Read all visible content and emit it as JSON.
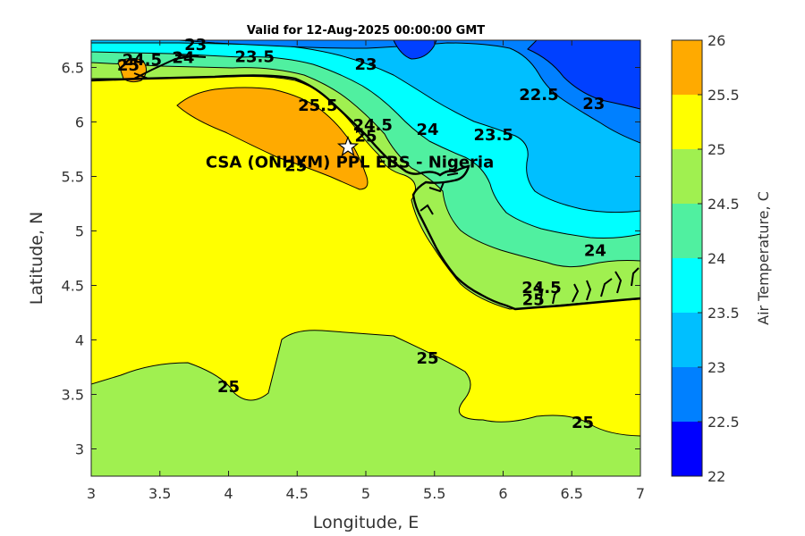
{
  "chart_data": {
    "type": "heatmap",
    "title": "Valid for 12-Aug-2025 00:00:00 GMT",
    "xlabel": "Longitude, E",
    "ylabel": "Latitude, N",
    "xlim": [
      3,
      7
    ],
    "ylim": [
      2.75,
      6.75
    ],
    "xticks": [
      "3",
      "3.5",
      "4",
      "4.5",
      "5",
      "5.5",
      "6",
      "6.5",
      "7"
    ],
    "xtick_values": [
      3,
      3.5,
      4,
      4.5,
      5,
      5.5,
      6,
      6.5,
      7
    ],
    "yticks": [
      "3",
      "3.5",
      "4",
      "4.5",
      "5",
      "5.5",
      "6",
      "6.5"
    ],
    "ytick_values": [
      3,
      3.5,
      4,
      4.5,
      5,
      5.5,
      6,
      6.5
    ],
    "colorbar": {
      "label": "Air Temperature, C",
      "ticks": [
        "22",
        "22.5",
        "23",
        "23.5",
        "24",
        "24.5",
        "25",
        "25.5",
        "26"
      ],
      "tick_values": [
        22,
        22.5,
        23,
        23.5,
        24,
        24.5,
        25,
        25.5,
        26
      ],
      "colors": [
        "#0000ff",
        "#0040ff",
        "#0080ff",
        "#00bfff",
        "#00ffff",
        "#50f0a0",
        "#a0f050",
        "#ffff00",
        "#ffaa00",
        "#ff5500"
      ]
    },
    "levels": [
      22.5,
      23,
      23.5,
      24,
      24.5,
      25,
      25.5
    ],
    "contour_labels": [
      {
        "text": "23",
        "x": 3.76,
        "y": 6.71
      },
      {
        "text": "24.5",
        "x": 3.37,
        "y": 6.57
      },
      {
        "text": "25",
        "x": 3.27,
        "y": 6.52
      },
      {
        "text": "24",
        "x": 3.67,
        "y": 6.59
      },
      {
        "text": "23.5",
        "x": 4.19,
        "y": 6.6
      },
      {
        "text": "23",
        "x": 5.0,
        "y": 6.53
      },
      {
        "text": "22.5",
        "x": 6.26,
        "y": 6.25
      },
      {
        "text": "23",
        "x": 6.66,
        "y": 6.17
      },
      {
        "text": "25.5",
        "x": 4.65,
        "y": 6.15
      },
      {
        "text": "24.5",
        "x": 5.05,
        "y": 5.97
      },
      {
        "text": "25",
        "x": 5.0,
        "y": 5.87
      },
      {
        "text": "24",
        "x": 5.45,
        "y": 5.93
      },
      {
        "text": "23.5",
        "x": 5.93,
        "y": 5.88
      },
      {
        "text": "25",
        "x": 4.49,
        "y": 5.6
      },
      {
        "text": "24",
        "x": 6.67,
        "y": 4.82
      },
      {
        "text": "24.5",
        "x": 6.28,
        "y": 4.48
      },
      {
        "text": "25",
        "x": 6.22,
        "y": 4.37
      },
      {
        "text": "25",
        "x": 5.45,
        "y": 3.83
      },
      {
        "text": "25",
        "x": 4.0,
        "y": 3.57
      },
      {
        "text": "25",
        "x": 6.58,
        "y": 3.24
      }
    ],
    "site": {
      "label": "CSA (ONHYM) PPL EBS - Nigeria",
      "lon": 4.87,
      "lat": 5.77
    }
  }
}
